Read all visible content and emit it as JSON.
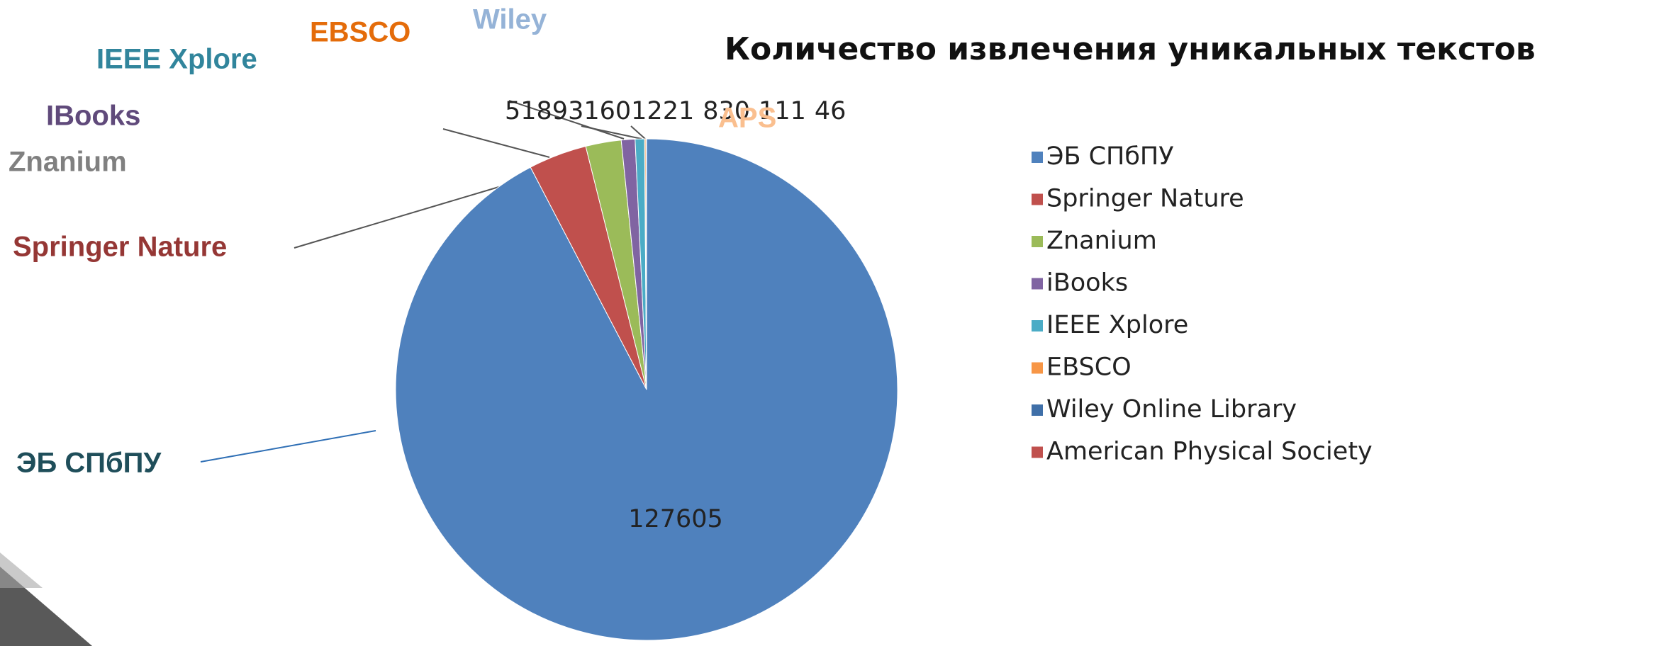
{
  "chart_data": {
    "type": "pie",
    "title": "Количество извлечения уникальных текстов",
    "categories": [
      "ЭБ СПбПУ",
      "Springer Nature",
      "Znanium",
      "iBooks",
      "IEEE Xplore",
      "EBSCO",
      "Wiley Online Library",
      "American Physical Society"
    ],
    "values": [
      127605,
      5189,
      3160,
      1221,
      830,
      111,
      46,
      20
    ],
    "value_labels": [
      "127605",
      "5189",
      "3160",
      "1221",
      "830",
      "111",
      "46",
      null
    ],
    "colors": [
      "#4f81bd",
      "#c0504d",
      "#9bbb59",
      "#8064a2",
      "#4bacc6",
      "#f79646",
      "#3f6fa8",
      "#c0504d"
    ],
    "annotations": [
      {
        "text": "ЭБ СПбПУ",
        "color": "#1f4e5a"
      },
      {
        "text": "Springer Nature",
        "color": "#953735"
      },
      {
        "text": "Znanium",
        "color": "#808080"
      },
      {
        "text": "IBooks",
        "color": "#604a7b"
      },
      {
        "text": "IEEE Xplore",
        "color": "#31859c"
      },
      {
        "text": "EBSCO",
        "color": "#e46c0a"
      },
      {
        "text": "Wiley",
        "color": "#95b3d7"
      },
      {
        "text": "APS",
        "color": "#fabf8f"
      }
    ]
  }
}
